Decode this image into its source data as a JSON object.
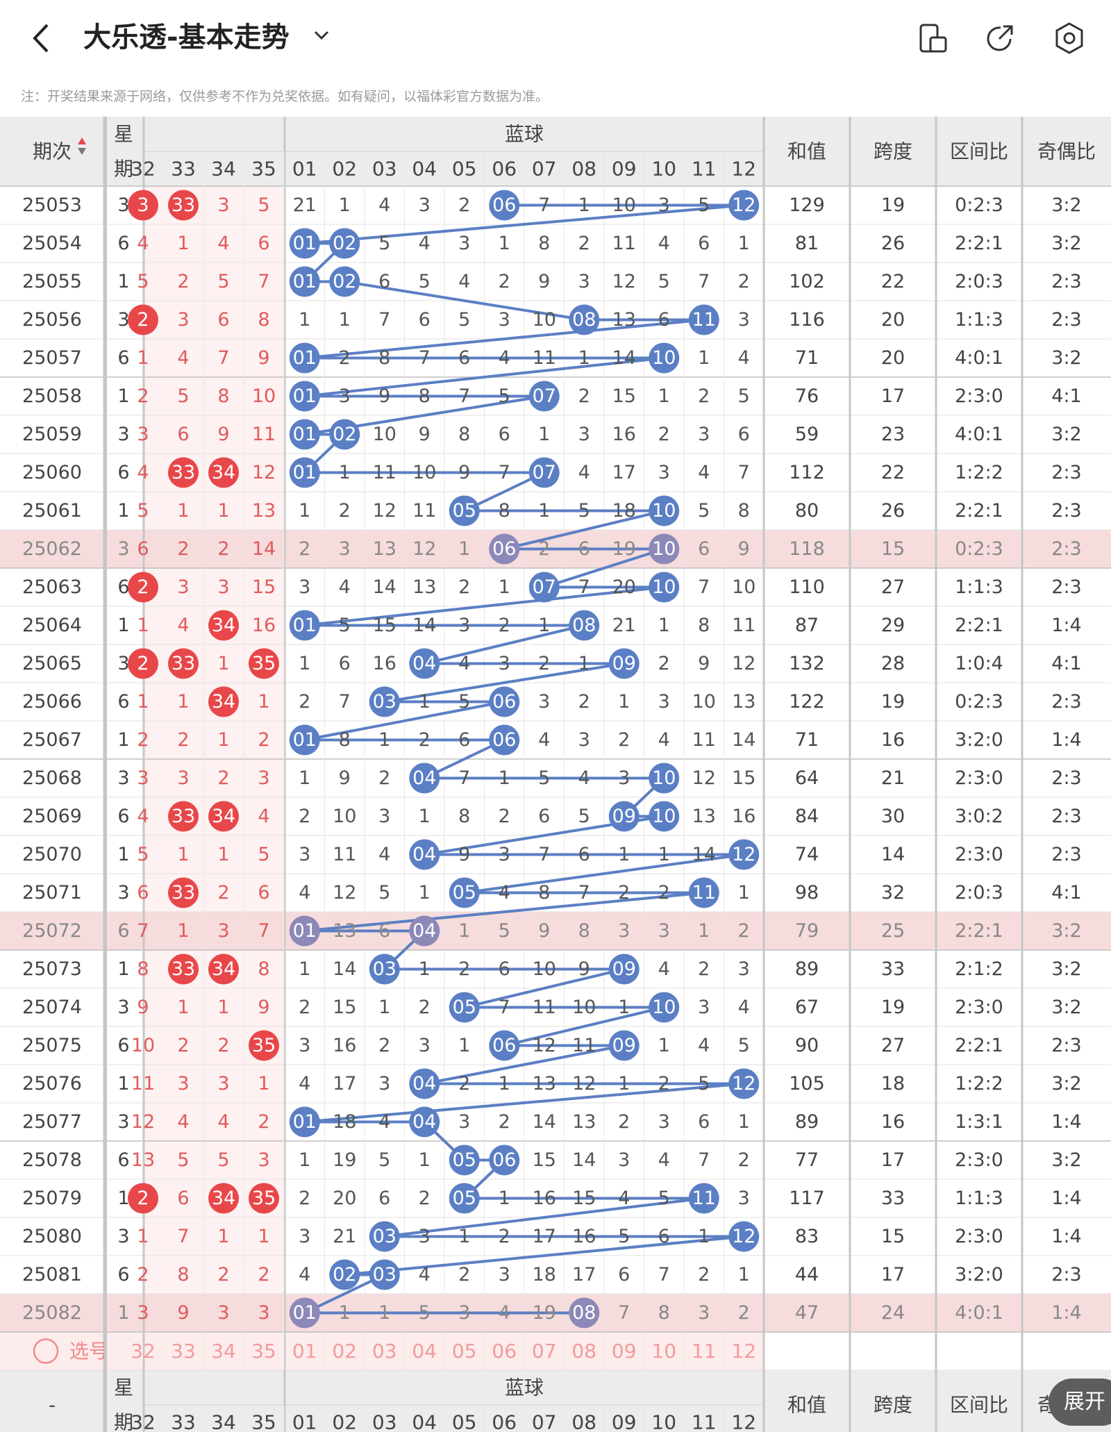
{
  "header": {
    "title": "大乐透-基本走势",
    "back_icon": "chevron-left-icon",
    "dropdown_icon": "chevron-down-icon",
    "icons": [
      "orientation-icon",
      "share-icon",
      "settings-icon"
    ]
  },
  "notice": "注：开奖结果来源于网络，仅供参考不作为兑奖依据。如有疑问，以福体彩官方数据为准。",
  "columns": {
    "period": "期次",
    "weekday_top": "星",
    "weekday_bottom": "期",
    "front_numbers": [
      "32",
      "33",
      "34",
      "35"
    ],
    "blue_group": "蓝球",
    "blue_numbers": [
      "01",
      "02",
      "03",
      "04",
      "05",
      "06",
      "07",
      "08",
      "09",
      "10",
      "11",
      "12"
    ],
    "sum": "和值",
    "span": "跨度",
    "zone": "区间比",
    "odd_even": "奇偶比"
  },
  "footer": {
    "select_label": "选号",
    "dash": "-",
    "expand": "展开"
  },
  "colors": {
    "red": "#e8474a",
    "blue_ball": "#5b7fc4",
    "highlight_row": "#f6dcdc",
    "header_bg": "#ececec"
  },
  "rows": [
    {
      "period": "25053",
      "week": "3",
      "front": [
        "3",
        "33",
        "3",
        "5"
      ],
      "frontHit": [
        true,
        true,
        false,
        false
      ],
      "blue": [
        "21",
        "1",
        "4",
        "3",
        "2",
        "06",
        "7",
        "1",
        "10",
        "3",
        "5",
        "12"
      ],
      "blueHit": [
        6,
        12
      ],
      "sum": "129",
      "span": "19",
      "zone": "0:2:3",
      "oe": "3:2"
    },
    {
      "period": "25054",
      "week": "6",
      "front": [
        "4",
        "1",
        "4",
        "6"
      ],
      "frontHit": [
        false,
        false,
        false,
        false
      ],
      "blue": [
        "01",
        "02",
        "5",
        "4",
        "3",
        "1",
        "8",
        "2",
        "11",
        "4",
        "6",
        "1"
      ],
      "blueHit": [
        1,
        2
      ],
      "sum": "81",
      "span": "26",
      "zone": "2:2:1",
      "oe": "3:2"
    },
    {
      "period": "25055",
      "week": "1",
      "front": [
        "5",
        "2",
        "5",
        "7"
      ],
      "frontHit": [
        false,
        false,
        false,
        false
      ],
      "blue": [
        "01",
        "02",
        "6",
        "5",
        "4",
        "2",
        "9",
        "3",
        "12",
        "5",
        "7",
        "2"
      ],
      "blueHit": [
        1,
        2
      ],
      "sum": "102",
      "span": "22",
      "zone": "2:0:3",
      "oe": "2:3"
    },
    {
      "period": "25056",
      "week": "3",
      "front": [
        "2",
        "3",
        "6",
        "8"
      ],
      "frontHit": [
        true,
        false,
        false,
        false
      ],
      "blue": [
        "1",
        "1",
        "7",
        "6",
        "5",
        "3",
        "10",
        "08",
        "13",
        "6",
        "11",
        "3"
      ],
      "blueHit": [
        8,
        11
      ],
      "sum": "116",
      "span": "20",
      "zone": "1:1:3",
      "oe": "2:3"
    },
    {
      "period": "25057",
      "week": "6",
      "front": [
        "1",
        "4",
        "7",
        "9"
      ],
      "frontHit": [
        false,
        false,
        false,
        false
      ],
      "blue": [
        "01",
        "2",
        "8",
        "7",
        "6",
        "4",
        "11",
        "1",
        "14",
        "10",
        "1",
        "4"
      ],
      "blueHit": [
        1,
        10
      ],
      "sum": "71",
      "span": "20",
      "zone": "4:0:1",
      "oe": "3:2"
    },
    {
      "period": "25058",
      "week": "1",
      "front": [
        "2",
        "5",
        "8",
        "10"
      ],
      "frontHit": [
        false,
        false,
        false,
        false
      ],
      "blue": [
        "01",
        "3",
        "9",
        "8",
        "7",
        "5",
        "07",
        "2",
        "15",
        "1",
        "2",
        "5"
      ],
      "blueHit": [
        1,
        7
      ],
      "sum": "76",
      "span": "17",
      "zone": "2:3:0",
      "oe": "4:1"
    },
    {
      "period": "25059",
      "week": "3",
      "front": [
        "3",
        "6",
        "9",
        "11"
      ],
      "frontHit": [
        false,
        false,
        false,
        false
      ],
      "blue": [
        "01",
        "02",
        "10",
        "9",
        "8",
        "6",
        "1",
        "3",
        "16",
        "2",
        "3",
        "6"
      ],
      "blueHit": [
        1,
        2
      ],
      "sum": "59",
      "span": "23",
      "zone": "4:0:1",
      "oe": "3:2"
    },
    {
      "period": "25060",
      "week": "6",
      "front": [
        "4",
        "33",
        "34",
        "12"
      ],
      "frontHit": [
        false,
        true,
        true,
        false
      ],
      "blue": [
        "01",
        "1",
        "11",
        "10",
        "9",
        "7",
        "07",
        "4",
        "17",
        "3",
        "4",
        "7"
      ],
      "blueHit": [
        1,
        7
      ],
      "sum": "112",
      "span": "22",
      "zone": "1:2:2",
      "oe": "2:3"
    },
    {
      "period": "25061",
      "week": "1",
      "front": [
        "5",
        "1",
        "1",
        "13"
      ],
      "frontHit": [
        false,
        false,
        false,
        false
      ],
      "blue": [
        "1",
        "2",
        "12",
        "11",
        "05",
        "8",
        "1",
        "5",
        "18",
        "10",
        "5",
        "8"
      ],
      "blueHit": [
        5,
        10
      ],
      "sum": "80",
      "span": "26",
      "zone": "2:2:1",
      "oe": "2:3"
    },
    {
      "period": "25062",
      "week": "3",
      "front": [
        "6",
        "2",
        "2",
        "14"
      ],
      "frontHit": [
        false,
        false,
        false,
        false
      ],
      "blue": [
        "2",
        "3",
        "13",
        "12",
        "1",
        "06",
        "2",
        "6",
        "19",
        "10",
        "6",
        "9"
      ],
      "blueHit": [
        6,
        10
      ],
      "sum": "118",
      "span": "15",
      "zone": "0:2:3",
      "oe": "2:3",
      "hl": true
    },
    {
      "period": "25063",
      "week": "6",
      "front": [
        "2",
        "3",
        "3",
        "15"
      ],
      "frontHit": [
        true,
        false,
        false,
        false
      ],
      "blue": [
        "3",
        "4",
        "14",
        "13",
        "2",
        "1",
        "07",
        "7",
        "20",
        "10",
        "7",
        "10"
      ],
      "blueHit": [
        7,
        10
      ],
      "sum": "110",
      "span": "27",
      "zone": "1:1:3",
      "oe": "2:3"
    },
    {
      "period": "25064",
      "week": "1",
      "front": [
        "1",
        "4",
        "34",
        "16"
      ],
      "frontHit": [
        false,
        false,
        true,
        false
      ],
      "blue": [
        "01",
        "5",
        "15",
        "14",
        "3",
        "2",
        "1",
        "08",
        "21",
        "1",
        "8",
        "11"
      ],
      "blueHit": [
        1,
        8
      ],
      "sum": "87",
      "span": "29",
      "zone": "2:2:1",
      "oe": "1:4"
    },
    {
      "period": "25065",
      "week": "3",
      "front": [
        "2",
        "33",
        "1",
        "35"
      ],
      "frontHit": [
        true,
        true,
        false,
        true
      ],
      "blue": [
        "1",
        "6",
        "16",
        "04",
        "4",
        "3",
        "2",
        "1",
        "09",
        "2",
        "9",
        "12"
      ],
      "blueHit": [
        4,
        9
      ],
      "sum": "132",
      "span": "28",
      "zone": "1:0:4",
      "oe": "4:1"
    },
    {
      "period": "25066",
      "week": "6",
      "front": [
        "1",
        "1",
        "34",
        "1"
      ],
      "frontHit": [
        false,
        false,
        true,
        false
      ],
      "blue": [
        "2",
        "7",
        "03",
        "1",
        "5",
        "06",
        "3",
        "2",
        "1",
        "3",
        "10",
        "13"
      ],
      "blueHit": [
        3,
        6
      ],
      "sum": "122",
      "span": "19",
      "zone": "0:2:3",
      "oe": "2:3"
    },
    {
      "period": "25067",
      "week": "1",
      "front": [
        "2",
        "2",
        "1",
        "2"
      ],
      "frontHit": [
        false,
        false,
        false,
        false
      ],
      "blue": [
        "01",
        "8",
        "1",
        "2",
        "6",
        "06",
        "4",
        "3",
        "2",
        "4",
        "11",
        "14"
      ],
      "blueHit": [
        1,
        6
      ],
      "sum": "71",
      "span": "16",
      "zone": "3:2:0",
      "oe": "1:4"
    },
    {
      "period": "25068",
      "week": "3",
      "front": [
        "3",
        "3",
        "2",
        "3"
      ],
      "frontHit": [
        false,
        false,
        false,
        false
      ],
      "blue": [
        "1",
        "9",
        "2",
        "04",
        "7",
        "1",
        "5",
        "4",
        "3",
        "10",
        "12",
        "15"
      ],
      "blueHit": [
        4,
        10
      ],
      "sum": "64",
      "span": "21",
      "zone": "2:3:0",
      "oe": "2:3"
    },
    {
      "period": "25069",
      "week": "6",
      "front": [
        "4",
        "33",
        "34",
        "4"
      ],
      "frontHit": [
        false,
        true,
        true,
        false
      ],
      "blue": [
        "2",
        "10",
        "3",
        "1",
        "8",
        "2",
        "6",
        "5",
        "09",
        "10",
        "13",
        "16"
      ],
      "blueHit": [
        9,
        10
      ],
      "sum": "84",
      "span": "30",
      "zone": "3:0:2",
      "oe": "2:3"
    },
    {
      "period": "25070",
      "week": "1",
      "front": [
        "5",
        "1",
        "1",
        "5"
      ],
      "frontHit": [
        false,
        false,
        false,
        false
      ],
      "blue": [
        "3",
        "11",
        "4",
        "04",
        "9",
        "3",
        "7",
        "6",
        "1",
        "1",
        "14",
        "12"
      ],
      "blueHit": [
        4,
        12
      ],
      "sum": "74",
      "span": "14",
      "zone": "2:3:0",
      "oe": "2:3"
    },
    {
      "period": "25071",
      "week": "3",
      "front": [
        "6",
        "33",
        "2",
        "6"
      ],
      "frontHit": [
        false,
        true,
        false,
        false
      ],
      "blue": [
        "4",
        "12",
        "5",
        "1",
        "05",
        "4",
        "8",
        "7",
        "2",
        "2",
        "11",
        "1"
      ],
      "blueHit": [
        5,
        11
      ],
      "sum": "98",
      "span": "32",
      "zone": "2:0:3",
      "oe": "4:1"
    },
    {
      "period": "25072",
      "week": "6",
      "front": [
        "7",
        "1",
        "3",
        "7"
      ],
      "frontHit": [
        false,
        false,
        false,
        false
      ],
      "blue": [
        "01",
        "13",
        "6",
        "04",
        "1",
        "5",
        "9",
        "8",
        "3",
        "3",
        "1",
        "2"
      ],
      "blueHit": [
        1,
        4
      ],
      "sum": "79",
      "span": "25",
      "zone": "2:2:1",
      "oe": "3:2",
      "hl": true
    },
    {
      "period": "25073",
      "week": "1",
      "front": [
        "8",
        "33",
        "34",
        "8"
      ],
      "frontHit": [
        false,
        true,
        true,
        false
      ],
      "blue": [
        "1",
        "14",
        "03",
        "1",
        "2",
        "6",
        "10",
        "9",
        "09",
        "4",
        "2",
        "3"
      ],
      "blueHit": [
        3,
        9
      ],
      "sum": "89",
      "span": "33",
      "zone": "2:1:2",
      "oe": "3:2"
    },
    {
      "period": "25074",
      "week": "3",
      "front": [
        "9",
        "1",
        "1",
        "9"
      ],
      "frontHit": [
        false,
        false,
        false,
        false
      ],
      "blue": [
        "2",
        "15",
        "1",
        "2",
        "05",
        "7",
        "11",
        "10",
        "1",
        "10",
        "3",
        "4"
      ],
      "blueHit": [
        5,
        10
      ],
      "sum": "67",
      "span": "19",
      "zone": "2:3:0",
      "oe": "3:2"
    },
    {
      "period": "25075",
      "week": "6",
      "front": [
        "10",
        "2",
        "2",
        "35"
      ],
      "frontHit": [
        false,
        false,
        false,
        true
      ],
      "blue": [
        "3",
        "16",
        "2",
        "3",
        "1",
        "06",
        "12",
        "11",
        "09",
        "1",
        "4",
        "5"
      ],
      "blueHit": [
        6,
        9
      ],
      "sum": "90",
      "span": "27",
      "zone": "2:2:1",
      "oe": "2:3"
    },
    {
      "period": "25076",
      "week": "1",
      "front": [
        "11",
        "3",
        "3",
        "1"
      ],
      "frontHit": [
        false,
        false,
        false,
        false
      ],
      "blue": [
        "4",
        "17",
        "3",
        "04",
        "2",
        "1",
        "13",
        "12",
        "1",
        "2",
        "5",
        "12"
      ],
      "blueHit": [
        4,
        12
      ],
      "sum": "105",
      "span": "18",
      "zone": "1:2:2",
      "oe": "3:2"
    },
    {
      "period": "25077",
      "week": "3",
      "front": [
        "12",
        "4",
        "4",
        "2"
      ],
      "frontHit": [
        false,
        false,
        false,
        false
      ],
      "blue": [
        "01",
        "18",
        "4",
        "04",
        "3",
        "2",
        "14",
        "13",
        "2",
        "3",
        "6",
        "1"
      ],
      "blueHit": [
        1,
        4
      ],
      "sum": "89",
      "span": "16",
      "zone": "1:3:1",
      "oe": "1:4"
    },
    {
      "period": "25078",
      "week": "6",
      "front": [
        "13",
        "5",
        "5",
        "3"
      ],
      "frontHit": [
        false,
        false,
        false,
        false
      ],
      "blue": [
        "1",
        "19",
        "5",
        "1",
        "05",
        "06",
        "15",
        "14",
        "3",
        "4",
        "7",
        "2"
      ],
      "blueHit": [
        5,
        6
      ],
      "sum": "77",
      "span": "17",
      "zone": "2:3:0",
      "oe": "3:2"
    },
    {
      "period": "25079",
      "week": "1",
      "front": [
        "2",
        "6",
        "34",
        "35"
      ],
      "frontHit": [
        true,
        false,
        true,
        true
      ],
      "blue": [
        "2",
        "20",
        "6",
        "2",
        "05",
        "1",
        "16",
        "15",
        "4",
        "5",
        "11",
        "3"
      ],
      "blueHit": [
        5,
        11
      ],
      "sum": "117",
      "span": "33",
      "zone": "1:1:3",
      "oe": "1:4"
    },
    {
      "period": "25080",
      "week": "3",
      "front": [
        "1",
        "7",
        "1",
        "1"
      ],
      "frontHit": [
        false,
        false,
        false,
        false
      ],
      "blue": [
        "3",
        "21",
        "03",
        "3",
        "1",
        "2",
        "17",
        "16",
        "5",
        "6",
        "1",
        "12"
      ],
      "blueHit": [
        3,
        12
      ],
      "sum": "83",
      "span": "15",
      "zone": "2:3:0",
      "oe": "1:4"
    },
    {
      "period": "25081",
      "week": "6",
      "front": [
        "2",
        "8",
        "2",
        "2"
      ],
      "frontHit": [
        false,
        false,
        false,
        false
      ],
      "blue": [
        "4",
        "02",
        "03",
        "4",
        "2",
        "3",
        "18",
        "17",
        "6",
        "7",
        "2",
        "1"
      ],
      "blueHit": [
        2,
        3
      ],
      "sum": "44",
      "span": "17",
      "zone": "3:2:0",
      "oe": "2:3"
    },
    {
      "period": "25082",
      "week": "1",
      "front": [
        "3",
        "9",
        "3",
        "3"
      ],
      "frontHit": [
        false,
        false,
        false,
        false
      ],
      "blue": [
        "01",
        "1",
        "1",
        "5",
        "3",
        "4",
        "19",
        "08",
        "7",
        "8",
        "3",
        "2"
      ],
      "blueHit": [
        1,
        8
      ],
      "sum": "47",
      "span": "24",
      "zone": "4:0:1",
      "oe": "1:4",
      "hl": true
    }
  ]
}
